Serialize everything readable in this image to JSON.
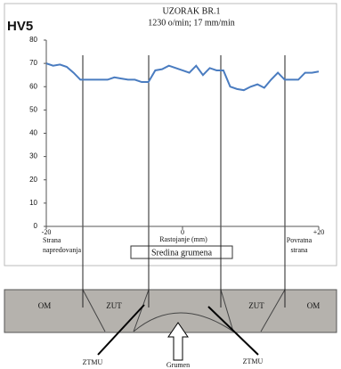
{
  "chart_data": {
    "type": "line",
    "y_label": "HV5",
    "title": "UZORAK BR.1",
    "subtitle": "1230 o/min; 17 mm/min",
    "x_label": "Rastojanje (mm)",
    "left_note": [
      "Strana",
      "napredovanja"
    ],
    "right_note": [
      "Povratna",
      "strana"
    ],
    "center_note": "Sredina grumena",
    "x": [
      -20,
      -19,
      -18,
      -17,
      -16,
      -15,
      -14,
      -13,
      -12,
      -11,
      -10,
      -9,
      -8,
      -7,
      -6,
      -5,
      -4,
      -3,
      -2,
      -1,
      0,
      1,
      2,
      3,
      4,
      5,
      6,
      7,
      8,
      9,
      10,
      11,
      12,
      13,
      14,
      15,
      16,
      17,
      18,
      19,
      20
    ],
    "series": [
      {
        "name": "HV5",
        "color": "#4a7cc0",
        "values": [
          70,
          69,
          69.5,
          68.5,
          66,
          63,
          63,
          63,
          63,
          63,
          64,
          63.5,
          63,
          63,
          62,
          62,
          67,
          67.5,
          69,
          68,
          67,
          66,
          69,
          65,
          68,
          67,
          67,
          60,
          59,
          58.5,
          60,
          61,
          59.5,
          63,
          66,
          63,
          63,
          63,
          66,
          66,
          66.5
        ]
      }
    ],
    "xlim": [
      -20,
      20
    ],
    "xticks": [
      -20,
      0,
      {
        "value": 20,
        "label": "+20"
      }
    ],
    "ylim": [
      0,
      80
    ],
    "yticks": [
      0,
      10,
      20,
      30,
      40,
      50,
      60,
      70,
      80
    ],
    "grid": false
  },
  "diagram": {
    "zones": [
      "OM",
      "ZUT",
      "ZUT",
      "OM"
    ],
    "left_arrow": "ZTMU",
    "center_arrow": "Grumen",
    "right_arrow": "ZTMU"
  }
}
